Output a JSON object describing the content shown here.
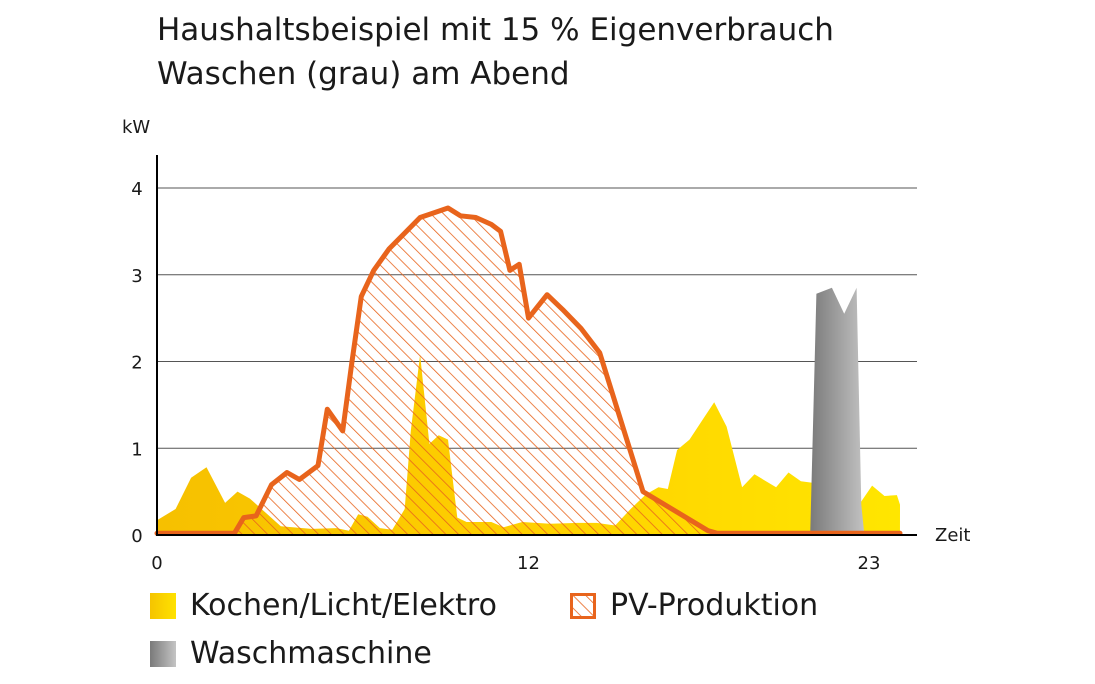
{
  "title_lines": [
    "Haushaltsbeispiel mit 15 % Eigenverbrauch",
    "Waschen (grau) am Abend"
  ],
  "colors": {
    "consumption": "#ffd200",
    "consumption_dark": "#f5b800",
    "pv": "#e8641c",
    "washing": "#9a9a9a",
    "grid": "#555555"
  },
  "chart_data": {
    "type": "area",
    "title": "Haushaltsbeispiel mit 15 % Eigenverbrauch Waschen (grau) am Abend",
    "ylabel": "kW",
    "xlabel": "Zeit",
    "xlim": [
      0,
      24
    ],
    "ylim": [
      0,
      4.3
    ],
    "x_ticks": [
      0,
      12,
      23
    ],
    "y_ticks": [
      0,
      1,
      2,
      3,
      4
    ],
    "grid": true,
    "legend_position": "bottom",
    "series": [
      {
        "name": "Kochen/Licht/Elektro",
        "kind": "area",
        "points": [
          [
            0,
            0.17
          ],
          [
            0.6,
            0.3
          ],
          [
            1.1,
            0.66
          ],
          [
            1.6,
            0.78
          ],
          [
            2.2,
            0.37
          ],
          [
            2.6,
            0.5
          ],
          [
            3.0,
            0.42
          ],
          [
            3.5,
            0.26
          ],
          [
            4.0,
            0.1
          ],
          [
            5.0,
            0.07
          ],
          [
            5.8,
            0.08
          ],
          [
            6.2,
            0.05
          ],
          [
            6.5,
            0.24
          ],
          [
            6.8,
            0.21
          ],
          [
            7.2,
            0.08
          ],
          [
            7.6,
            0.06
          ],
          [
            8.0,
            0.3
          ],
          [
            8.2,
            1.2
          ],
          [
            8.5,
            2.08
          ],
          [
            8.8,
            1.05
          ],
          [
            9.1,
            1.15
          ],
          [
            9.4,
            1.1
          ],
          [
            9.7,
            0.2
          ],
          [
            10.0,
            0.15
          ],
          [
            10.8,
            0.15
          ],
          [
            11.2,
            0.09
          ],
          [
            11.8,
            0.15
          ],
          [
            12.7,
            0.13
          ],
          [
            13.6,
            0.14
          ],
          [
            14.2,
            0.14
          ],
          [
            14.8,
            0.11
          ],
          [
            15.3,
            0.3
          ],
          [
            15.8,
            0.47
          ],
          [
            16.2,
            0.55
          ],
          [
            16.5,
            0.53
          ],
          [
            16.8,
            0.98
          ],
          [
            17.2,
            1.1
          ],
          [
            17.7,
            1.37
          ],
          [
            18.0,
            1.53
          ],
          [
            18.4,
            1.25
          ],
          [
            18.9,
            0.55
          ],
          [
            19.3,
            0.7
          ],
          [
            20.0,
            0.55
          ],
          [
            20.4,
            0.72
          ],
          [
            20.8,
            0.62
          ],
          [
            21.2,
            0.6
          ],
          [
            21.6,
            0.78
          ],
          [
            21.9,
            0.62
          ],
          [
            22.3,
            0.35
          ],
          [
            22.7,
            0.36
          ],
          [
            23.1,
            0.57
          ],
          [
            23.5,
            0.45
          ],
          [
            23.9,
            0.46
          ],
          [
            24.0,
            0.35
          ]
        ]
      },
      {
        "name": "Waschmaschine",
        "kind": "area",
        "points": [
          [
            21.1,
            0.0
          ],
          [
            21.3,
            2.78
          ],
          [
            21.8,
            2.85
          ],
          [
            22.2,
            2.55
          ],
          [
            22.6,
            2.85
          ],
          [
            22.75,
            0.35
          ],
          [
            22.85,
            0.0
          ]
        ]
      },
      {
        "name": "PV-Produktion",
        "kind": "line-hatched",
        "points": [
          [
            0,
            0.02
          ],
          [
            2.5,
            0.02
          ],
          [
            2.8,
            0.2
          ],
          [
            3.2,
            0.22
          ],
          [
            3.7,
            0.58
          ],
          [
            4.2,
            0.72
          ],
          [
            4.6,
            0.64
          ],
          [
            5.2,
            0.8
          ],
          [
            5.5,
            1.45
          ],
          [
            6.0,
            1.2
          ],
          [
            6.3,
            2.0
          ],
          [
            6.6,
            2.75
          ],
          [
            7.0,
            3.05
          ],
          [
            7.5,
            3.3
          ],
          [
            8.0,
            3.48
          ],
          [
            8.5,
            3.66
          ],
          [
            9.0,
            3.72
          ],
          [
            9.4,
            3.77
          ],
          [
            9.8,
            3.68
          ],
          [
            10.3,
            3.66
          ],
          [
            10.8,
            3.58
          ],
          [
            11.1,
            3.5
          ],
          [
            11.4,
            3.05
          ],
          [
            11.7,
            3.12
          ],
          [
            12.0,
            2.5
          ],
          [
            12.6,
            2.77
          ],
          [
            13.1,
            2.6
          ],
          [
            13.7,
            2.38
          ],
          [
            14.3,
            2.1
          ],
          [
            15.7,
            0.5
          ],
          [
            17.8,
            0.05
          ],
          [
            18.1,
            0.02
          ],
          [
            24.0,
            0.02
          ]
        ]
      }
    ]
  },
  "legend": {
    "consumption": "Kochen/Licht/Elektro",
    "pv": "PV-Produktion",
    "washing": "Waschmaschine"
  }
}
